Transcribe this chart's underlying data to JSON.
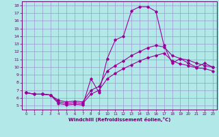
{
  "xlabel": "Windchill (Refroidissement éolien,°C)",
  "bg_color": "#b2e8e8",
  "line_color": "#990099",
  "grid_color": "#9999cc",
  "spine_color": "#660066",
  "tick_color": "#660066",
  "xlim": [
    -0.5,
    23.5
  ],
  "ylim": [
    4.5,
    18.5
  ],
  "xticks": [
    0,
    1,
    2,
    3,
    4,
    5,
    6,
    7,
    8,
    9,
    10,
    11,
    12,
    13,
    14,
    15,
    16,
    17,
    18,
    19,
    20,
    21,
    22,
    23
  ],
  "yticks": [
    5,
    6,
    7,
    8,
    9,
    10,
    11,
    12,
    13,
    14,
    15,
    16,
    17,
    18
  ],
  "series1_x": [
    0,
    1,
    2,
    3,
    4,
    5,
    6,
    7,
    8,
    9,
    10,
    11,
    12,
    13,
    14,
    15,
    16,
    17,
    18,
    19,
    20,
    21,
    22,
    23
  ],
  "series1_y": [
    6.7,
    6.5,
    6.5,
    6.4,
    5.3,
    5.1,
    5.2,
    5.1,
    8.5,
    6.7,
    11.1,
    13.5,
    14.0,
    17.3,
    17.8,
    17.8,
    17.2,
    12.8,
    10.5,
    11.1,
    10.5,
    10.0,
    10.5,
    10.0
  ],
  "series2_x": [
    0,
    1,
    2,
    3,
    4,
    5,
    6,
    7,
    8,
    9,
    10,
    11,
    12,
    13,
    14,
    15,
    16,
    17,
    18,
    19,
    20,
    21,
    22,
    23
  ],
  "series2_y": [
    6.7,
    6.5,
    6.5,
    6.4,
    5.7,
    5.5,
    5.6,
    5.5,
    7.0,
    7.5,
    9.5,
    10.2,
    10.8,
    11.5,
    12.0,
    12.5,
    12.8,
    12.6,
    11.5,
    11.1,
    10.9,
    10.5,
    10.2,
    10.0
  ],
  "series3_x": [
    0,
    1,
    2,
    3,
    4,
    5,
    6,
    7,
    8,
    9,
    10,
    11,
    12,
    13,
    14,
    15,
    16,
    17,
    18,
    19,
    20,
    21,
    22,
    23
  ],
  "series3_y": [
    6.7,
    6.5,
    6.5,
    6.4,
    5.5,
    5.3,
    5.4,
    5.3,
    6.5,
    7.0,
    8.5,
    9.2,
    9.8,
    10.3,
    10.8,
    11.2,
    11.5,
    11.8,
    10.8,
    10.4,
    10.2,
    9.9,
    9.8,
    9.5
  ]
}
